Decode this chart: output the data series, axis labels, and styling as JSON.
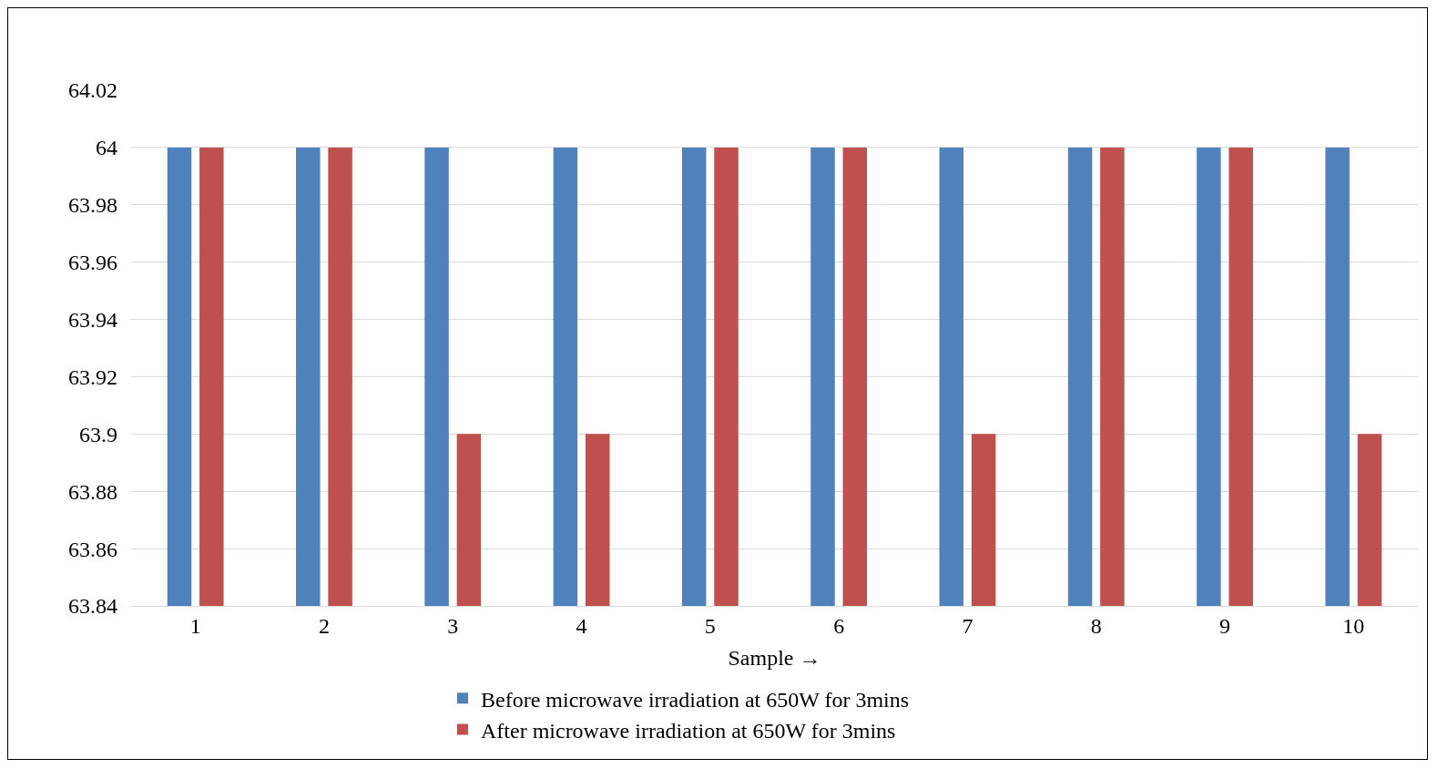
{
  "chart_data": {
    "type": "bar",
    "xlabel": "Sample →",
    "categories": [
      "1",
      "2",
      "3",
      "4",
      "5",
      "6",
      "7",
      "8",
      "9",
      "10"
    ],
    "series": [
      {
        "name": "Before microwave irradiation at 650W for 3mins",
        "color": "#4f81bd",
        "values": [
          64,
          64,
          64,
          64,
          64,
          64,
          64,
          64,
          64,
          64
        ]
      },
      {
        "name": "After microwave irradiation at 650W for 3mins",
        "color": "#c0504d",
        "values": [
          64,
          64,
          63.9,
          63.9,
          64,
          64,
          63.9,
          64,
          64,
          63.9
        ]
      }
    ],
    "ylim": [
      63.84,
      64.02
    ],
    "yticks": [
      63.84,
      63.86,
      63.88,
      63.9,
      63.92,
      63.94,
      63.96,
      63.98,
      64,
      64.02
    ],
    "grid": "y",
    "legend": "bottom"
  }
}
